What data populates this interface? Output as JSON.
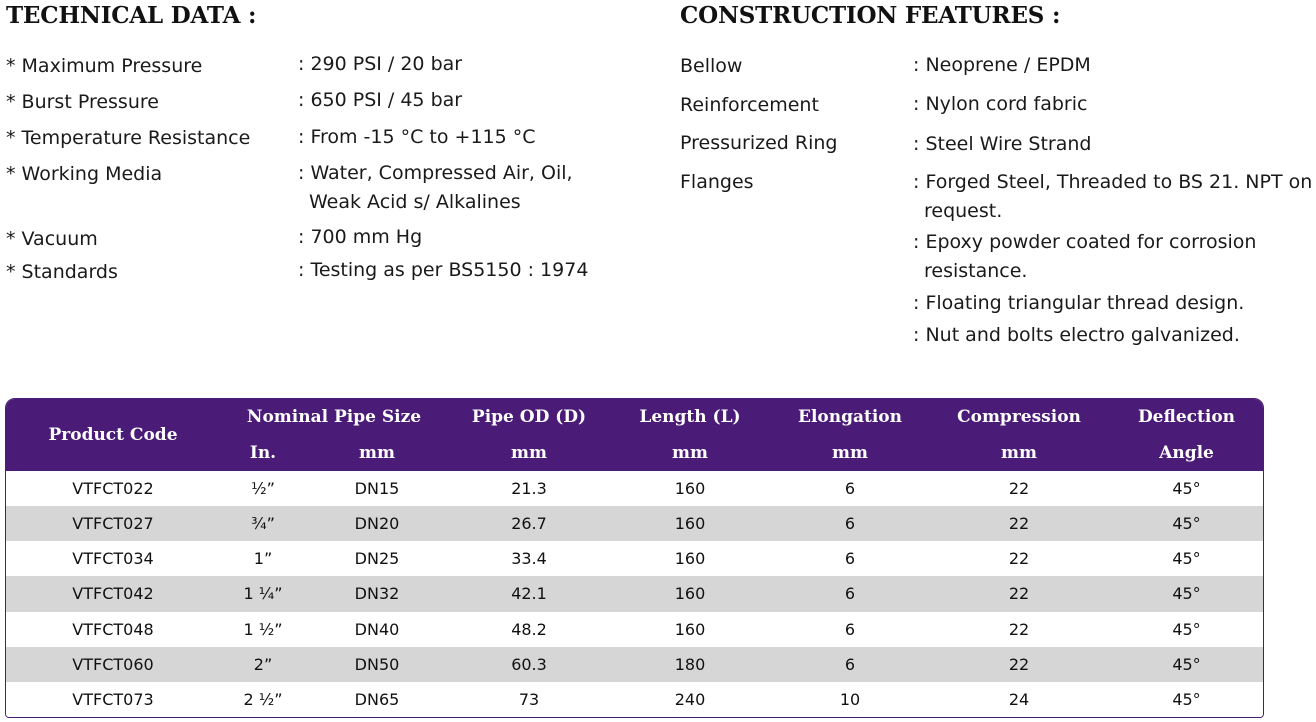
{
  "technical": {
    "title": "TECHNICAL DATA :",
    "rows": [
      {
        "label": "* Maximum Pressure",
        "value": ": 290 PSI / 20 bar"
      },
      {
        "label": "* Burst Pressure",
        "value": ": 650 PSI / 45 bar"
      },
      {
        "label": "* Temperature Resistance",
        "value": ": From -15 °C to +115 °C"
      },
      {
        "label": "* Working Media",
        "value": ": Water, Compressed Air, Oil,",
        "value2": "Weak Acid s/ Alkalines"
      },
      {
        "label": "* Vacuum",
        "value": ": 700 mm Hg"
      },
      {
        "label": "* Standards",
        "value": ": Testing as per BS5150 : 1974"
      }
    ]
  },
  "construction": {
    "title": "CONSTRUCTION FEATURES :",
    "rows": [
      {
        "label": "Bellow",
        "value": ": Neoprene / EPDM"
      },
      {
        "label": "Reinforcement",
        "value": ": Nylon cord fabric"
      },
      {
        "label": "Pressurized Ring",
        "value": ": Steel Wire Strand"
      },
      {
        "label": "Flanges",
        "value": ": Forged Steel, Threaded to BS 21. NPT on",
        "value2": "request."
      }
    ],
    "extra": [
      {
        "value": ": Epoxy powder coated for corrosion",
        "value2": "resistance."
      },
      {
        "value": ": Floating triangular thread design."
      },
      {
        "value": ": Nut and bolts electro galvanized."
      }
    ]
  },
  "table": {
    "headers": {
      "product_code": "Product Code",
      "nominal_pipe_size": "Nominal Pipe Size",
      "pipe_od": "Pipe OD (D)",
      "length": "Length (L)",
      "elongation": "Elongation",
      "compression": "Compression",
      "deflection": "Deflection",
      "in": "In.",
      "mm": "mm",
      "angle": "Angle"
    },
    "rows": [
      {
        "code": "VTFCT022",
        "inch": "½”",
        "dn": "DN15",
        "od": "21.3",
        "length": "160",
        "elong": "6",
        "comp": "22",
        "angle": "45°"
      },
      {
        "code": "VTFCT027",
        "inch": "¾”",
        "dn": "DN20",
        "od": "26.7",
        "length": "160",
        "elong": "6",
        "comp": "22",
        "angle": "45°"
      },
      {
        "code": "VTFCT034",
        "inch": "1”",
        "dn": "DN25",
        "od": "33.4",
        "length": "160",
        "elong": "6",
        "comp": "22",
        "angle": "45°"
      },
      {
        "code": "VTFCT042",
        "inch": "1 ¼”",
        "dn": "DN32",
        "od": "42.1",
        "length": "160",
        "elong": "6",
        "comp": "22",
        "angle": "45°"
      },
      {
        "code": "VTFCT048",
        "inch": "1 ½”",
        "dn": "DN40",
        "od": "48.2",
        "length": "160",
        "elong": "6",
        "comp": "22",
        "angle": "45°"
      },
      {
        "code": "VTFCT060",
        "inch": "2”",
        "dn": "DN50",
        "od": "60.3",
        "length": "180",
        "elong": "6",
        "comp": "22",
        "angle": "45°"
      },
      {
        "code": "VTFCT073",
        "inch": "2 ½”",
        "dn": "DN65",
        "od": "73",
        "length": "240",
        "elong": "10",
        "comp": "24",
        "angle": "45°"
      }
    ]
  }
}
